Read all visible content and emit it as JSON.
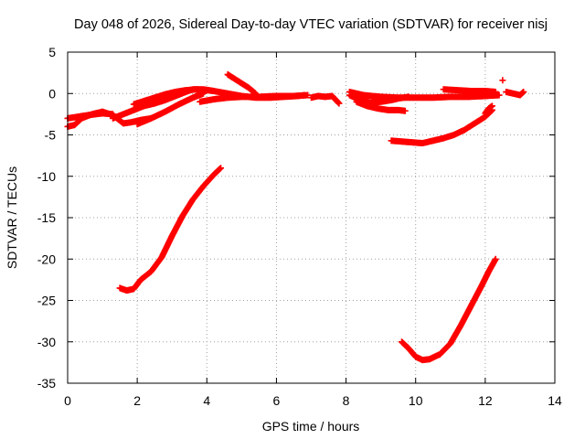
{
  "chart_data": {
    "type": "scatter",
    "title": "Day 048 of 2026, Sidereal Day-to-day VTEC variation (SDTVAR) for receiver nisj",
    "xlabel": "GPS time / hours",
    "ylabel": "SDTVAR / TECUs",
    "xlim": [
      0,
      14
    ],
    "ylim": [
      -35,
      5
    ],
    "xticks": [
      "0",
      "2",
      "4",
      "6",
      "8",
      "10",
      "12",
      "14"
    ],
    "yticks": [
      "5",
      "0",
      "-5",
      "-10",
      "-15",
      "-20",
      "-25",
      "-30",
      "-35"
    ],
    "grid": true,
    "marker_color": "#ff0000",
    "series": [
      {
        "x": [
          0,
          0.2,
          0.4,
          0.7,
          1.0,
          1.3,
          1.6,
          1.8,
          2.1,
          2.4
        ],
        "y": [
          -4.0,
          -3.8,
          -3.0,
          -2.5,
          -2.2,
          -2.6,
          -3.6,
          -3.5,
          -3.2,
          -3.0
        ]
      },
      {
        "x": [
          0,
          0.3,
          0.6,
          1.0,
          1.3
        ],
        "y": [
          -3.0,
          -2.8,
          -2.6,
          -2.4,
          -2.5
        ]
      },
      {
        "x": [
          1.3,
          1.6,
          1.9,
          2.2,
          2.5,
          2.8,
          3.1,
          3.4,
          3.6,
          3.9,
          4.2,
          4.6,
          5.0,
          5.4,
          5.8,
          6.2,
          6.6,
          6.8
        ],
        "y": [
          -3.0,
          -2.5,
          -2.0,
          -1.5,
          -1.2,
          -0.8,
          -0.3,
          0.2,
          0.5,
          0.5,
          0.3,
          0.0,
          -0.3,
          -0.5,
          -0.5,
          -0.4,
          -0.3,
          -0.2
        ]
      },
      {
        "x": [
          1.9,
          2.2,
          2.5,
          2.8,
          3.1,
          3.4,
          3.7,
          4.0,
          4.2
        ],
        "y": [
          -1.3,
          -0.9,
          -0.5,
          -0.1,
          0.2,
          0.4,
          0.5,
          0.4,
          0.3
        ]
      },
      {
        "x": [
          2.0,
          2.4,
          2.8,
          3.2,
          3.6,
          3.9
        ],
        "y": [
          -3.7,
          -3.0,
          -2.2,
          -1.3,
          -0.5,
          0.0
        ]
      },
      {
        "x": [
          3.8,
          4.2,
          4.6,
          5.0,
          5.5,
          6.0,
          6.5,
          6.9
        ],
        "y": [
          -1.0,
          -0.7,
          -0.5,
          -0.4,
          -0.4,
          -0.3,
          -0.3,
          -0.2
        ]
      },
      {
        "x": [
          4.6,
          4.9,
          5.2,
          5.4
        ],
        "y": [
          2.3,
          1.5,
          0.7,
          0.0
        ]
      },
      {
        "x": [
          7.0,
          7.2,
          7.4,
          7.6,
          7.8
        ],
        "y": [
          -0.5,
          -0.3,
          -0.4,
          -0.3,
          -1.2
        ]
      },
      {
        "x": [
          8.1,
          8.5,
          9.0,
          9.5,
          10.0,
          10.5,
          11.0,
          11.5,
          12.0,
          12.4
        ],
        "y": [
          0.2,
          -0.2,
          -0.4,
          -0.5,
          -0.5,
          -0.5,
          -0.4,
          -0.4,
          -0.3,
          -0.2
        ]
      },
      {
        "x": [
          8.1,
          8.4,
          8.7,
          9.0,
          9.3,
          9.5,
          9.8
        ],
        "y": [
          -0.2,
          -0.8,
          -1.1,
          -1.0,
          -0.8,
          -0.6,
          -0.4
        ]
      },
      {
        "x": [
          8.3,
          8.6,
          8.9,
          9.2,
          9.5,
          9.7
        ],
        "y": [
          -1.0,
          -1.5,
          -1.8,
          -2.0,
          -2.0,
          -2.1
        ]
      },
      {
        "x": [
          10.8,
          11.2,
          11.6,
          12.0,
          12.3
        ],
        "y": [
          0.5,
          0.4,
          0.3,
          0.3,
          0.2
        ]
      },
      {
        "x": [
          9.3,
          9.6,
          9.9,
          10.2,
          10.5,
          10.8,
          11.1,
          11.4,
          11.7,
          12.0,
          12.2
        ],
        "y": [
          -5.7,
          -5.8,
          -5.9,
          -6.0,
          -5.7,
          -5.4,
          -5.0,
          -4.4,
          -3.6,
          -2.8,
          -2.0
        ]
      },
      {
        "x": [
          12.0,
          12.1,
          12.2
        ],
        "y": [
          -2.4,
          -1.8,
          -1.5
        ]
      },
      {
        "x": [
          12.5
        ],
        "y": [
          1.6
        ]
      },
      {
        "x": [
          12.6,
          12.8,
          13.0,
          13.1
        ],
        "y": [
          0.2,
          0.0,
          -0.2,
          0.2
        ]
      },
      {
        "x": [
          1.5,
          1.7,
          1.9,
          2.1,
          2.4,
          2.7,
          3.0,
          3.3,
          3.6,
          3.9,
          4.2,
          4.4
        ],
        "y": [
          -23.5,
          -23.8,
          -23.6,
          -22.5,
          -21.5,
          -19.8,
          -17.2,
          -14.8,
          -12.8,
          -11.2,
          -9.8,
          -9.0
        ]
      },
      {
        "x": [
          9.6,
          9.8,
          10.0,
          10.2,
          10.4,
          10.7,
          11.0,
          11.3,
          11.6,
          11.9,
          12.1,
          12.3
        ],
        "y": [
          -30.0,
          -30.8,
          -31.8,
          -32.2,
          -32.1,
          -31.5,
          -30.2,
          -28.0,
          -25.6,
          -23.2,
          -21.5,
          -20.0
        ]
      }
    ]
  }
}
